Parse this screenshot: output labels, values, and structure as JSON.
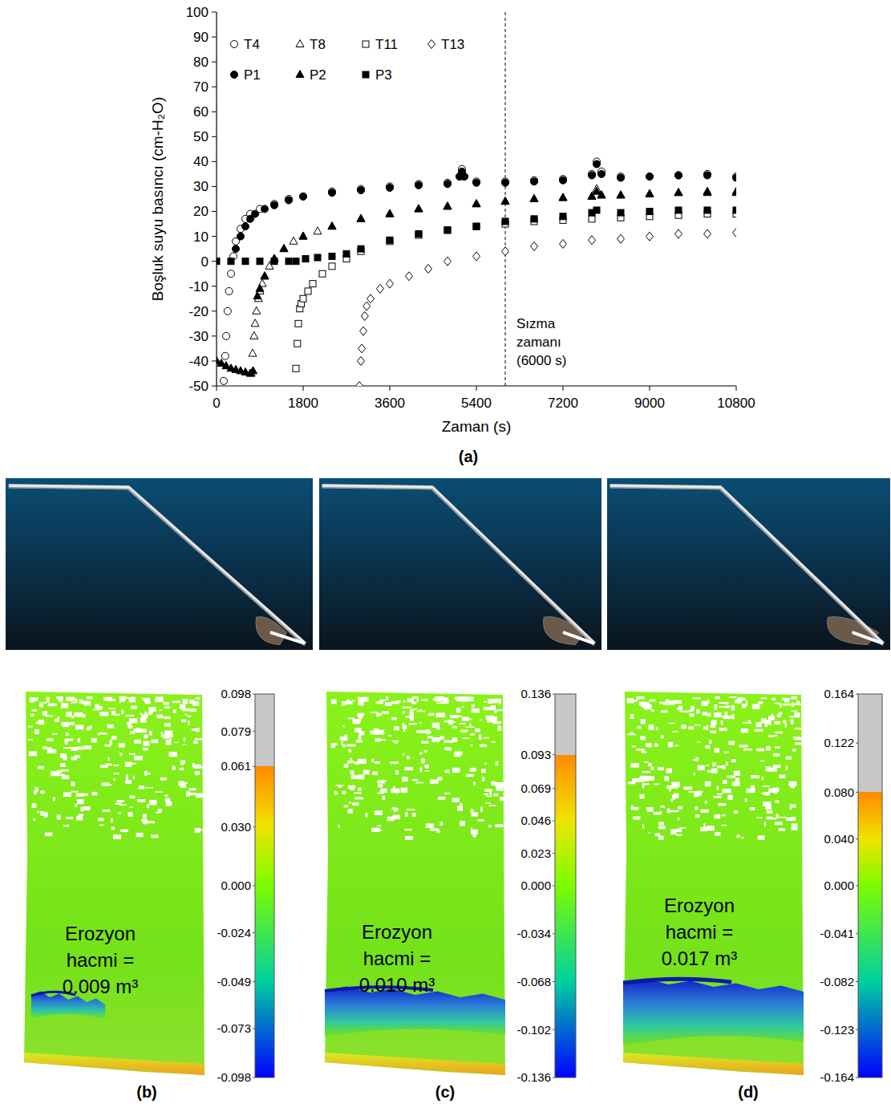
{
  "chart_data": {
    "type": "scatter",
    "panel_label": "(a)",
    "xlabel": "Zaman (s)",
    "ylabel": "Boşluk suyu basıncı (cm-H₂O)",
    "xlim": [
      0,
      10800
    ],
    "xticks": [
      0,
      1800,
      3600,
      5400,
      7200,
      9000,
      10800
    ],
    "ylim": [
      -50,
      100
    ],
    "yticks": [
      -50,
      -40,
      -30,
      -20,
      -10,
      0,
      10,
      20,
      30,
      40,
      50,
      60,
      70,
      80,
      90,
      100
    ],
    "grid": false,
    "legend": "upper left",
    "annotations": [
      {
        "x": 6000,
        "text": [
          "Sızma",
          "zamanı",
          "(6000 s)"
        ]
      }
    ],
    "series": [
      {
        "name": "T4",
        "color": "#000000",
        "marker": "open-circle",
        "x": [
          150,
          180,
          200,
          230,
          260,
          300,
          350,
          400,
          500,
          600,
          700,
          900,
          1200,
          1500,
          1800,
          2400,
          3000,
          3600,
          4200,
          4800,
          5050,
          5100,
          5150,
          5400,
          6000,
          6600,
          7200,
          7800,
          7900,
          8000,
          8400,
          9000,
          9600,
          10200,
          10800
        ],
        "values": [
          -48,
          -38,
          -30,
          -20,
          -12,
          -5,
          2,
          8,
          13,
          17,
          19,
          21,
          23,
          25,
          26,
          28,
          29,
          30,
          31,
          31.5,
          34,
          37,
          34,
          32,
          32,
          32.5,
          33,
          35,
          40,
          36,
          34,
          34,
          34.5,
          35,
          34
        ]
      },
      {
        "name": "T8",
        "color": "#000000",
        "marker": "open-triangle",
        "x": [
          720,
          750,
          780,
          800,
          830,
          870,
          900,
          950,
          1000,
          1100,
          1200,
          1400,
          1600,
          1800,
          2100,
          2400,
          3000,
          3600,
          4200,
          4800,
          5400,
          6000,
          6600,
          7200,
          7800,
          7900,
          8000,
          8400,
          9000,
          9600,
          10200,
          10800
        ],
        "values": [
          -45,
          -37,
          -30,
          -25,
          -20,
          -15,
          -12,
          -9,
          -6,
          -2,
          1,
          5,
          8,
          10,
          12,
          14,
          17,
          19,
          21,
          22,
          23,
          24,
          25,
          25.5,
          26,
          29,
          26.5,
          26.5,
          27,
          27.5,
          28,
          28
        ]
      },
      {
        "name": "T11",
        "color": "#000000",
        "marker": "open-square",
        "x": [
          1650,
          1680,
          1700,
          1730,
          1760,
          1800,
          1900,
          2000,
          2200,
          2400,
          2700,
          3000,
          3600,
          4200,
          4800,
          5400,
          6000,
          6600,
          7200,
          7800,
          8400,
          9000,
          9600,
          10200,
          10800
        ],
        "values": [
          -43,
          -33,
          -25,
          -19,
          -17,
          -15,
          -12,
          -9,
          -5,
          -2,
          1,
          4,
          8,
          10.5,
          12.5,
          14,
          15,
          16,
          16.5,
          17,
          17.5,
          18,
          18.5,
          19,
          19
        ]
      },
      {
        "name": "T13",
        "color": "#000000",
        "marker": "open-diamond",
        "x": [
          2970,
          3000,
          3020,
          3050,
          3080,
          3120,
          3200,
          3400,
          3600,
          4000,
          4400,
          4800,
          5400,
          6000,
          6600,
          7200,
          7800,
          8400,
          9000,
          9600,
          10200,
          10800
        ],
        "values": [
          -50,
          -40,
          -35,
          -28,
          -22,
          -18,
          -15,
          -11,
          -9,
          -6,
          -3,
          0,
          2,
          4,
          6,
          7,
          8.5,
          9,
          10,
          11,
          11,
          11.5
        ]
      },
      {
        "name": "P1",
        "color": "#000000",
        "marker": "circle",
        "x": [
          400,
          500,
          600,
          700,
          800,
          1000,
          1200,
          1500,
          1800,
          2400,
          3000,
          3600,
          4200,
          4800,
          5050,
          5100,
          5150,
          5400,
          6000,
          6600,
          7200,
          7800,
          7900,
          8000,
          8400,
          9000,
          9600,
          10200,
          10800
        ],
        "values": [
          5,
          10,
          14,
          17,
          19,
          21,
          22.5,
          24.5,
          26,
          27.5,
          28.5,
          29.5,
          30.5,
          31,
          34,
          36,
          34,
          31.5,
          31.5,
          32,
          32.5,
          34.5,
          39,
          35,
          33.5,
          34,
          34.5,
          34.5,
          33.5
        ]
      },
      {
        "name": "P2",
        "color": "#000000",
        "marker": "triangle",
        "x": [
          0,
          100,
          200,
          300,
          400,
          500,
          600,
          700,
          760,
          850,
          900,
          1000,
          1200,
          1400,
          1800,
          2400,
          3000,
          3600,
          4200,
          4800,
          5400,
          6000,
          6600,
          7200,
          7800,
          7900,
          8000,
          8400,
          9000,
          9600,
          10200,
          10800
        ],
        "values": [
          -40,
          -41,
          -42,
          -43,
          -43.5,
          -44,
          -44.5,
          -45,
          -44,
          -14,
          -11,
          -6,
          1,
          5,
          10,
          14,
          17,
          19,
          21,
          22,
          23,
          24,
          25,
          25.5,
          26,
          28,
          26.5,
          26.5,
          27,
          27.5,
          27.5,
          27.5
        ]
      },
      {
        "name": "P3",
        "color": "#000000",
        "marker": "square",
        "x": [
          0,
          300,
          600,
          900,
          1200,
          1500,
          1650,
          1850,
          2100,
          2400,
          2700,
          3000,
          3600,
          4200,
          4800,
          5400,
          6000,
          6600,
          7200,
          7800,
          7900,
          8400,
          9000,
          9600,
          10200,
          10800
        ],
        "values": [
          0,
          0,
          0,
          0,
          0,
          0,
          0,
          1,
          1.5,
          2,
          3,
          5,
          8.5,
          11,
          12.5,
          14,
          16,
          17,
          18,
          19.5,
          20.5,
          19.5,
          20,
          20.5,
          20.5,
          20.5
        ]
      }
    ]
  },
  "maps": [
    {
      "letter": "(b)",
      "text": [
        "Erozyon",
        "hacmi =",
        "0.009 m³"
      ],
      "colorbar": {
        "range": [
          -0.098,
          0.098
        ],
        "color_max": 0.061,
        "ticks": [
          0.098,
          0.079,
          0.061,
          {
            "value": 0.03,
            "label": "0.030"
          },
          {
            "value": 0,
            "label": "0.000"
          },
          -0.024,
          -0.049,
          -0.073,
          -0.098
        ]
      }
    },
    {
      "letter": "(c)",
      "text": [
        "Erozyon",
        "hacmi =",
        "0.010 m³"
      ],
      "colorbar": {
        "range": [
          -0.136,
          0.136
        ],
        "color_max": 0.093,
        "ticks": [
          0.136,
          0.093,
          0.069,
          0.046,
          0.023,
          {
            "value": 0,
            "label": "0.000"
          },
          -0.034,
          -0.068,
          -0.102,
          -0.136
        ]
      }
    },
    {
      "letter": "(d)",
      "text": [
        "Erozyon",
        "hacmi =",
        "0.017 m³"
      ],
      "colorbar": {
        "range": [
          -0.164,
          0.164
        ],
        "color_max": 0.08,
        "ticks": [
          0.164,
          0.122,
          {
            "value": 0.08,
            "label": "0.080"
          },
          {
            "value": 0.04,
            "label": "0.040"
          },
          {
            "value": 0,
            "label": "0.000"
          },
          -0.041,
          -0.082,
          -0.123,
          -0.164
        ]
      }
    }
  ]
}
